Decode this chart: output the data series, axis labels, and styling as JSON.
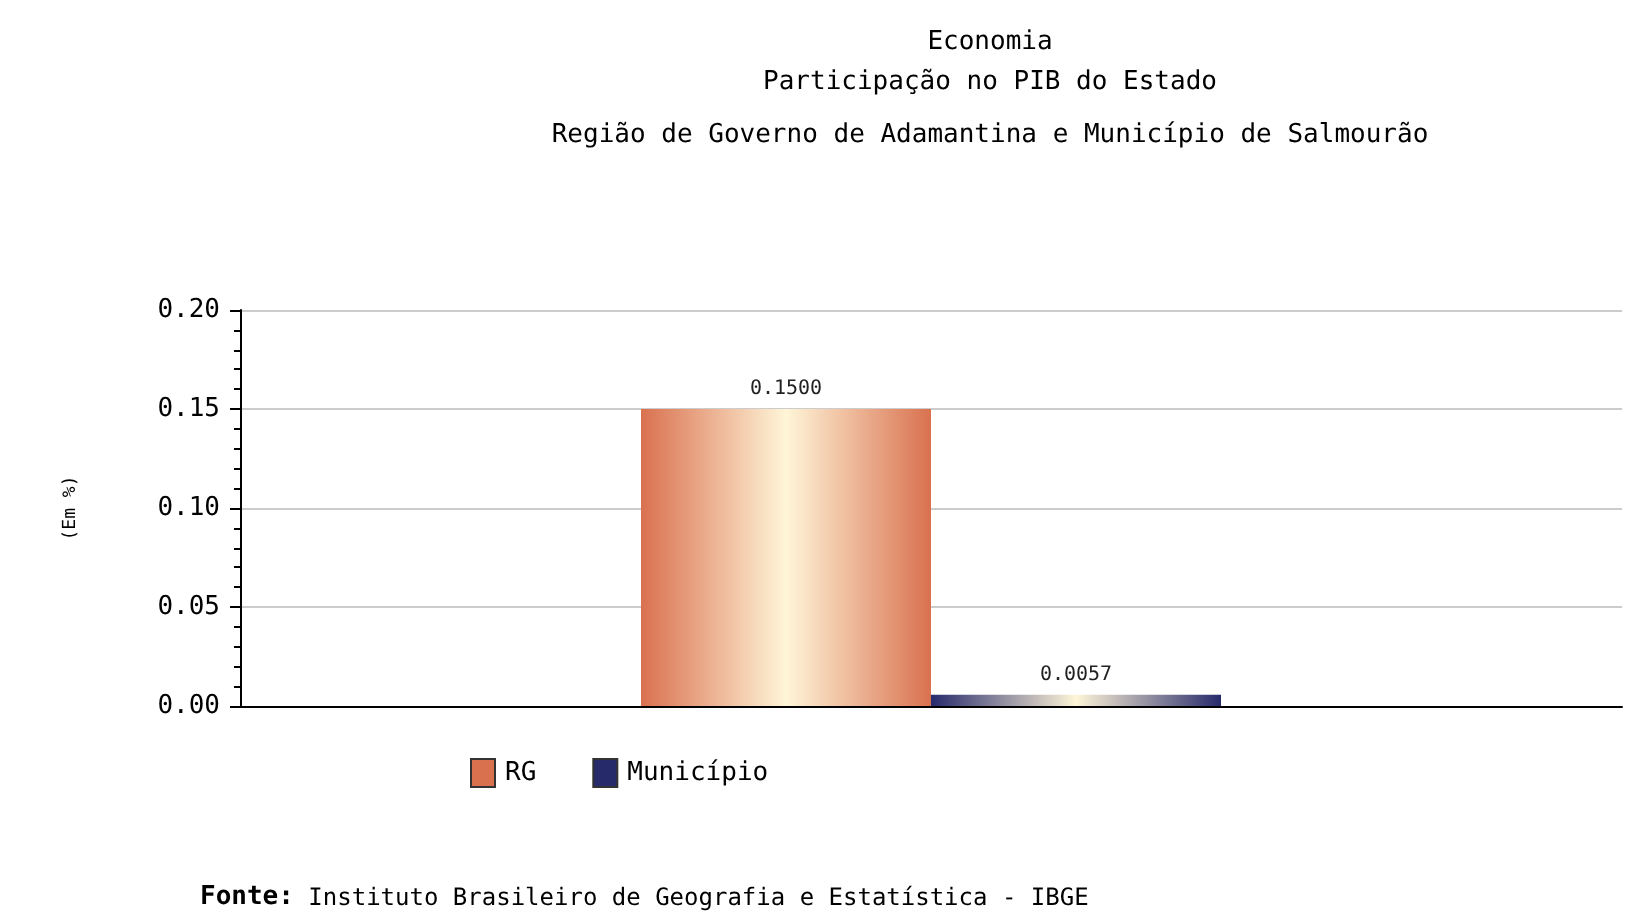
{
  "chart_data": {
    "type": "bar",
    "title": "Economia\nParticipação no PIB do Estado",
    "subtitle": "Região de Governo de Adamantina e Município de Salmourão",
    "ylabel": "(Em %)",
    "categories": [
      null
    ],
    "series": [
      {
        "name": "RG",
        "color": "#d9714f",
        "values": [
          0.15
        ],
        "value_labels": [
          "0.1500"
        ]
      },
      {
        "name": "Município",
        "color": "#262a6b",
        "values": [
          0.0057
        ],
        "value_labels": [
          "0.0057"
        ]
      }
    ],
    "ylim": [
      0,
      0.2
    ],
    "yticks": [
      {
        "value": 0,
        "label": "0.00"
      },
      {
        "value": 0.05,
        "label": "0.05"
      },
      {
        "value": 0.1,
        "label": "0.10"
      },
      {
        "value": 0.15,
        "label": "0.15"
      },
      {
        "value": 0.2,
        "label": "0.20"
      }
    ],
    "grid": "y",
    "legend": "bottom left",
    "annotations": [
      "Fonte: Instituto Brasileiro de Geografia e Estatística - IBGE"
    ]
  }
}
